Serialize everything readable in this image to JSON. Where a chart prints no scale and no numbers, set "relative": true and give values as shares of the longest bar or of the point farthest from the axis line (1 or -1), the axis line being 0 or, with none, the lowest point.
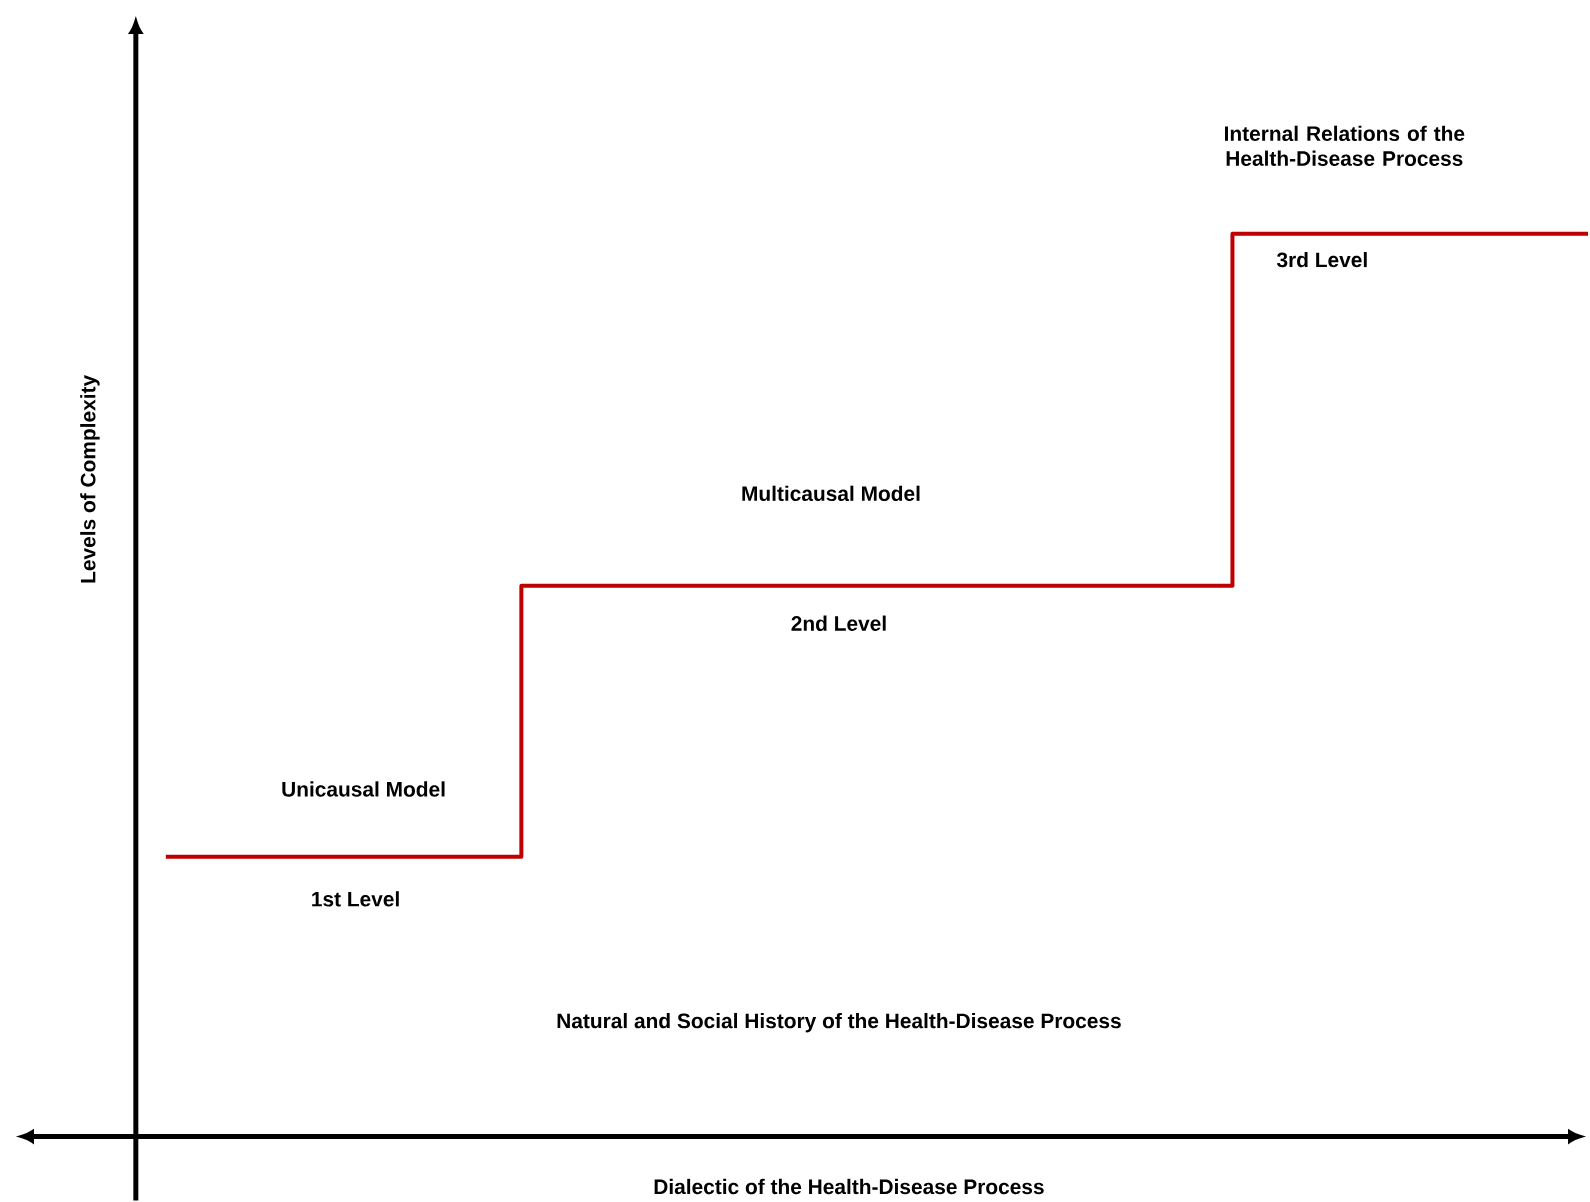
{
  "chart_data": {
    "type": "step",
    "relative": true,
    "categories": [
      null,
      null,
      null
    ],
    "values": [
      0.31,
      0.61,
      1
    ],
    "color": "#c00000",
    "xlabel": "Dialectic of the Health-Disease Process",
    "ylabel": "Levels of Complexity",
    "annotations": [
      "Unicausal Model",
      "1st Level",
      "Multicausal Model",
      "2nd Level",
      "Internal Relations of the Health-Disease Process",
      "3rd Level",
      "Natural and Social History of the Health-Disease Process"
    ]
  }
}
